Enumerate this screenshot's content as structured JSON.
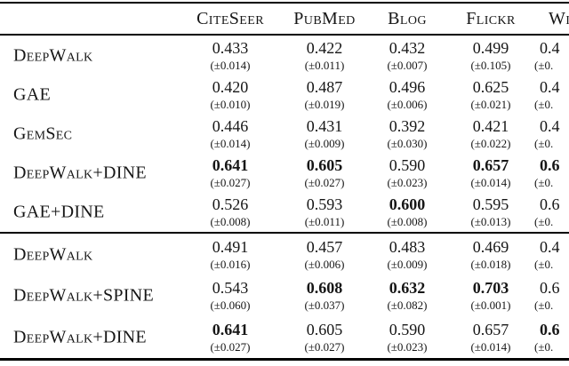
{
  "table": {
    "columns": [
      "CiteSeer",
      "PubMed",
      "Blog",
      "Flickr",
      "Wi"
    ],
    "sections": [
      {
        "rows": [
          {
            "label": "DeepWalk",
            "cells": [
              {
                "value": "0.433",
                "sigma": "(±0.014)",
                "bold": false
              },
              {
                "value": "0.422",
                "sigma": "(±0.011)",
                "bold": false
              },
              {
                "value": "0.432",
                "sigma": "(±0.007)",
                "bold": false
              },
              {
                "value": "0.499",
                "sigma": "(±0.105)",
                "bold": false
              },
              {
                "value": "0.4",
                "sigma": "(±0.",
                "bold": false
              }
            ]
          },
          {
            "label": "GAE",
            "cells": [
              {
                "value": "0.420",
                "sigma": "(±0.010)",
                "bold": false
              },
              {
                "value": "0.487",
                "sigma": "(±0.019)",
                "bold": false
              },
              {
                "value": "0.496",
                "sigma": "(±0.006)",
                "bold": false
              },
              {
                "value": "0.625",
                "sigma": "(±0.021)",
                "bold": false
              },
              {
                "value": "0.4",
                "sigma": "(±0.",
                "bold": false
              }
            ]
          },
          {
            "label": "GemSec",
            "cells": [
              {
                "value": "0.446",
                "sigma": "(±0.014)",
                "bold": false
              },
              {
                "value": "0.431",
                "sigma": "(±0.009)",
                "bold": false
              },
              {
                "value": "0.392",
                "sigma": "(±0.030)",
                "bold": false
              },
              {
                "value": "0.421",
                "sigma": "(±0.022)",
                "bold": false
              },
              {
                "value": "0.4",
                "sigma": "(±0.",
                "bold": false
              }
            ]
          },
          {
            "label": "DeepWalk+DINE",
            "cells": [
              {
                "value": "0.641",
                "sigma": "(±0.027)",
                "bold": true
              },
              {
                "value": "0.605",
                "sigma": "(±0.027)",
                "bold": true
              },
              {
                "value": "0.590",
                "sigma": "(±0.023)",
                "bold": false
              },
              {
                "value": "0.657",
                "sigma": "(±0.014)",
                "bold": true
              },
              {
                "value": "0.6",
                "sigma": "(±0.",
                "bold": true
              }
            ]
          },
          {
            "label": "GAE+DINE",
            "cells": [
              {
                "value": "0.526",
                "sigma": "(±0.008)",
                "bold": false
              },
              {
                "value": "0.593",
                "sigma": "(±0.011)",
                "bold": false
              },
              {
                "value": "0.600",
                "sigma": "(±0.008)",
                "bold": true
              },
              {
                "value": "0.595",
                "sigma": "(±0.013)",
                "bold": false
              },
              {
                "value": "0.6",
                "sigma": "(±0.",
                "bold": false
              }
            ]
          }
        ]
      },
      {
        "rows": [
          {
            "label": "DeepWalk",
            "cells": [
              {
                "value": "0.491",
                "sigma": "(±0.016)",
                "bold": false
              },
              {
                "value": "0.457",
                "sigma": "(±0.006)",
                "bold": false
              },
              {
                "value": "0.483",
                "sigma": "(±0.009)",
                "bold": false
              },
              {
                "value": "0.469",
                "sigma": "(±0.018)",
                "bold": false
              },
              {
                "value": "0.4",
                "sigma": "(±0.",
                "bold": false
              }
            ]
          },
          {
            "label": "DeepWalk+SPINE",
            "cells": [
              {
                "value": "0.543",
                "sigma": "(±0.060)",
                "bold": false
              },
              {
                "value": "0.608",
                "sigma": "(±0.037)",
                "bold": true
              },
              {
                "value": "0.632",
                "sigma": "(±0.082)",
                "bold": true
              },
              {
                "value": "0.703",
                "sigma": "(±0.001)",
                "bold": true
              },
              {
                "value": "0.6",
                "sigma": "(±0.",
                "bold": false
              }
            ]
          },
          {
            "label": "DeepWalk+DINE",
            "cells": [
              {
                "value": "0.641",
                "sigma": "(±0.027)",
                "bold": true
              },
              {
                "value": "0.605",
                "sigma": "(±0.027)",
                "bold": false
              },
              {
                "value": "0.590",
                "sigma": "(±0.023)",
                "bold": false
              },
              {
                "value": "0.657",
                "sigma": "(±0.014)",
                "bold": false
              },
              {
                "value": "0.6",
                "sigma": "(±0.",
                "bold": true
              }
            ]
          }
        ]
      }
    ]
  }
}
